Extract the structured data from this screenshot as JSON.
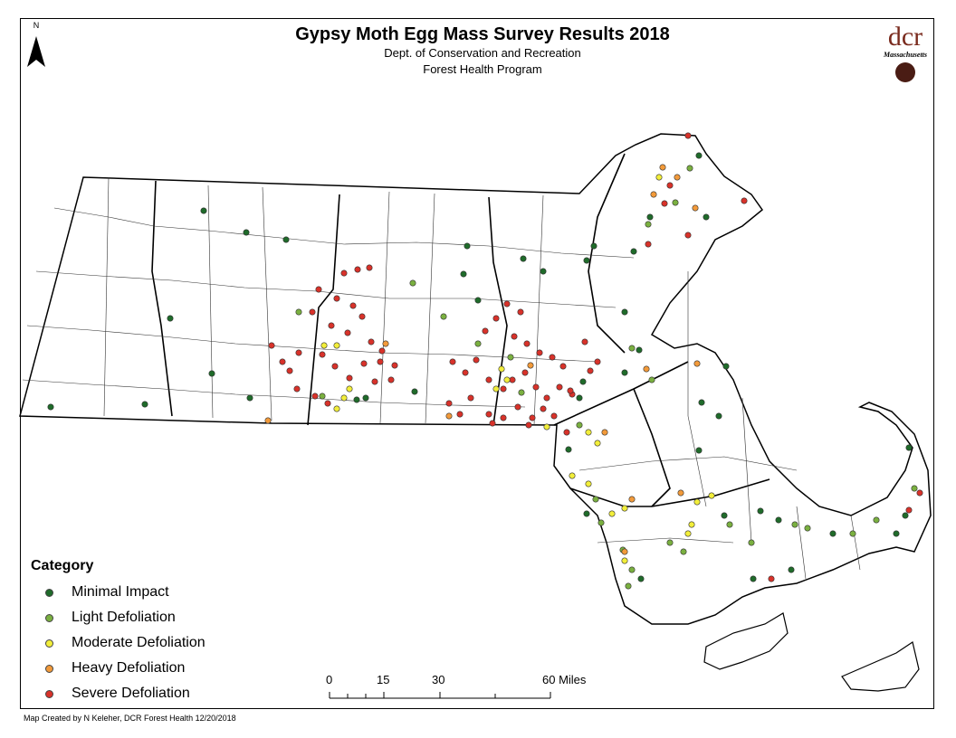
{
  "title": "Gypsy Moth Egg Mass Survey Results 2018",
  "subtitle1": "Dept. of Conservation and Recreation",
  "subtitle2": "Forest Health Program",
  "north_label": "N",
  "logo": {
    "text": "dcr",
    "state": "Massachusetts"
  },
  "legend": {
    "title": "Category",
    "items": [
      {
        "label": "Minimal Impact",
        "color": "#1f6b2a"
      },
      {
        "label": "Light Defoliation",
        "color": "#7ab040"
      },
      {
        "label": "Moderate Defoliation",
        "color": "#f2ee3a"
      },
      {
        "label": "Heavy Defoliation",
        "color": "#f29a3a"
      },
      {
        "label": "Severe Defoliation",
        "color": "#d8322a"
      }
    ]
  },
  "scale": {
    "ticks": [
      "0",
      "15",
      "30",
      "60 Miles"
    ]
  },
  "credit": "Map Created by N Keleher, DCR Forest Health 12/20/2018"
}
